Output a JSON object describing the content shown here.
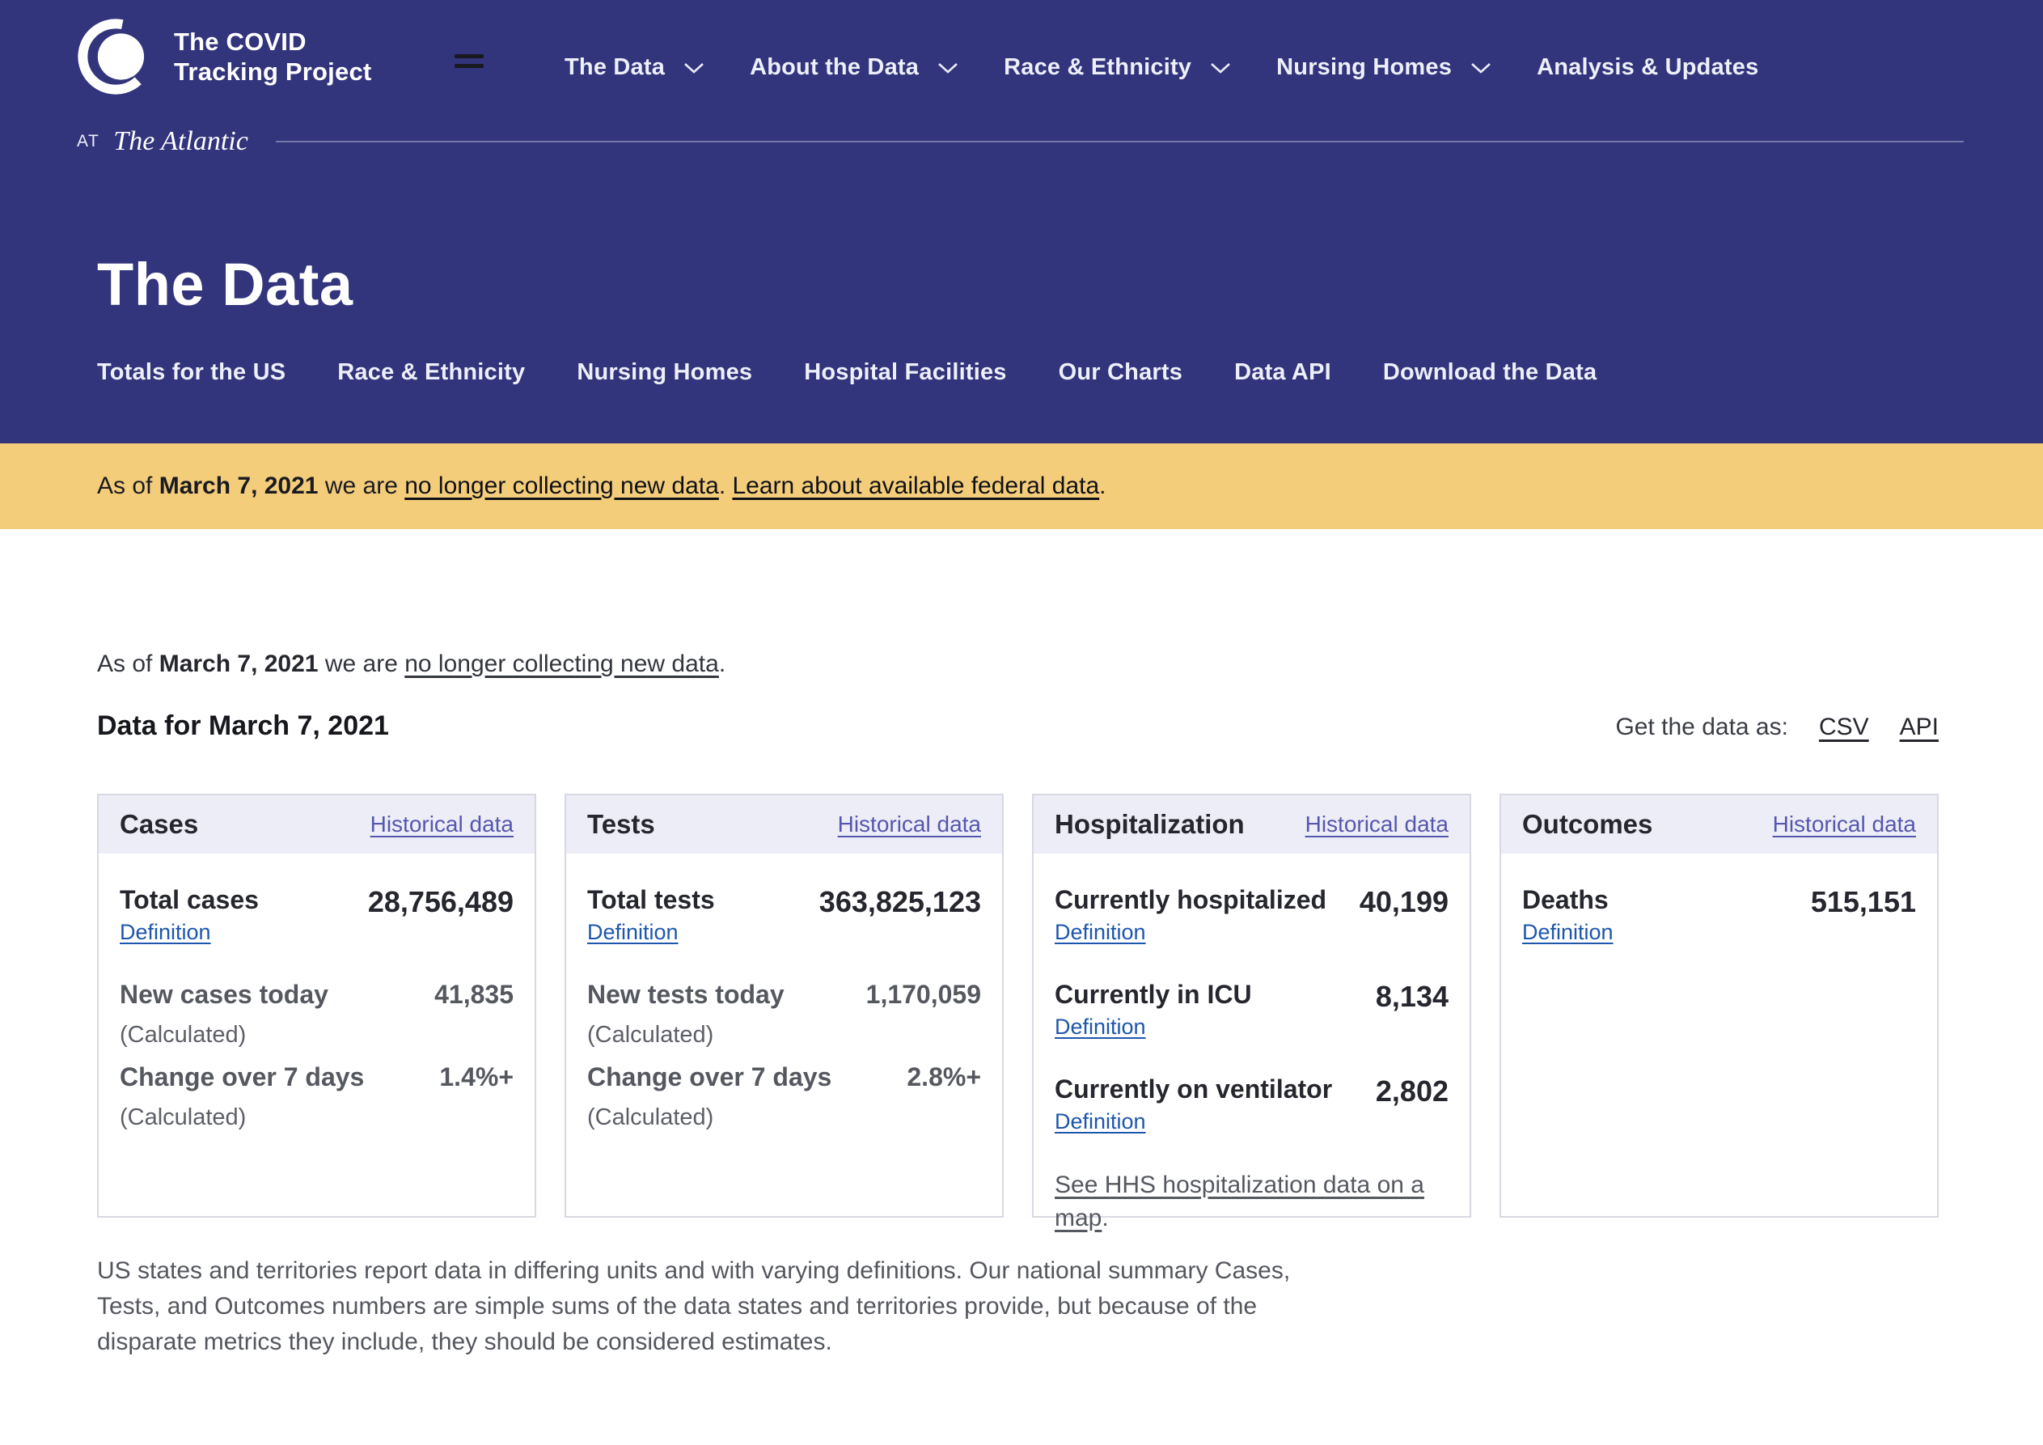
{
  "colors": {
    "navy": "#32347c",
    "banner_yellow": "#f4cd7b",
    "card_head_bg": "#ededf7",
    "card_border": "#d8d8e2",
    "indigo_link": "#5457ae",
    "blue_link": "#1d56ad",
    "text_dark": "#26272e",
    "text_gray": "#55585f"
  },
  "brand": {
    "logo_line1": "The COVID",
    "logo_line2": "Tracking Project",
    "at_label": "AT",
    "atlantic": "The Atlantic"
  },
  "nav": {
    "items": [
      {
        "label": "The Data",
        "has_dropdown": true
      },
      {
        "label": "About the Data",
        "has_dropdown": true
      },
      {
        "label": "Race & Ethnicity",
        "has_dropdown": true
      },
      {
        "label": "Nursing Homes",
        "has_dropdown": true
      },
      {
        "label": "Analysis & Updates",
        "has_dropdown": false
      }
    ]
  },
  "hero": {
    "title": "The Data",
    "subnav": [
      "Totals for the US",
      "Race & Ethnicity",
      "Nursing Homes",
      "Hospital Facilities",
      "Our Charts",
      "Data API",
      "Download the Data"
    ]
  },
  "banner": {
    "prefix": "As of ",
    "date": "March 7, 2021",
    "middle": " we are ",
    "link1": "no longer collecting new data",
    "separator": ". ",
    "link2": "Learn about available federal data",
    "suffix": "."
  },
  "notice": {
    "prefix": "As of ",
    "date": "March 7, 2021",
    "middle": " we are ",
    "link1": "no longer collecting new data",
    "suffix": "."
  },
  "data_section": {
    "heading": "Data for March 7, 2021",
    "get_data_label": "Get the data as:",
    "links": [
      "CSV",
      "API"
    ]
  },
  "cards": [
    {
      "title": "Cases",
      "historical_label": "Historical data",
      "rows": [
        {
          "label": "Total cases",
          "sub": "Definition",
          "sub_type": "link",
          "value": "28,756,489",
          "tone": "dark"
        },
        {
          "label": "New cases today",
          "sub": "(Calculated)",
          "sub_type": "text",
          "value": "41,835",
          "tone": "gray"
        },
        {
          "label": "Change over 7 days",
          "sub": "(Calculated)",
          "sub_type": "text",
          "value": "1.4%+",
          "tone": "gray"
        }
      ]
    },
    {
      "title": "Tests",
      "historical_label": "Historical data",
      "rows": [
        {
          "label": "Total tests",
          "sub": "Definition",
          "sub_type": "link",
          "value": "363,825,123",
          "tone": "dark"
        },
        {
          "label": "New tests today",
          "sub": "(Calculated)",
          "sub_type": "text",
          "value": "1,170,059",
          "tone": "gray"
        },
        {
          "label": "Change over 7 days",
          "sub": "(Calculated)",
          "sub_type": "text",
          "value": "2.8%+",
          "tone": "gray"
        }
      ]
    },
    {
      "title": "Hospitalization",
      "historical_label": "Historical data",
      "rows": [
        {
          "label": "Currently hospitalized",
          "sub": "Definition",
          "sub_type": "link",
          "value": "40,199",
          "tone": "dark"
        },
        {
          "label": "Currently in ICU",
          "sub": "Definition",
          "sub_type": "link",
          "value": "8,134",
          "tone": "dark"
        },
        {
          "label": "Currently on ventilator",
          "sub": "Definition",
          "sub_type": "link",
          "value": "2,802",
          "tone": "dark"
        }
      ],
      "see_link": "See HHS hospitalization data on a map",
      "see_suffix": "."
    },
    {
      "title": "Outcomes",
      "historical_label": "Historical data",
      "rows": [
        {
          "label": "Deaths",
          "sub": "Definition",
          "sub_type": "link",
          "value": "515,151",
          "tone": "dark"
        }
      ]
    }
  ],
  "footnote": "US states and territories report data in differing units and with varying definitions. Our national summary Cases, Tests, and Outcomes numbers are simple sums of the data states and territories provide, but because of the disparate metrics they include, they should be considered estimates."
}
